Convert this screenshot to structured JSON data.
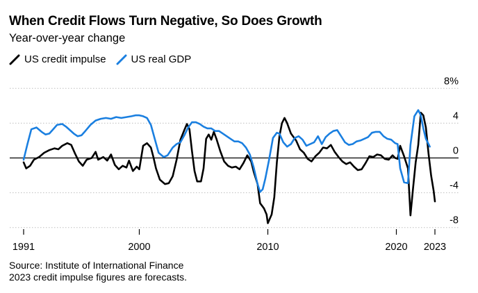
{
  "title": "When Credit Flows Turn Negative, So Does Growth",
  "subtitle": "Year-over-year change",
  "footer": {
    "source": "Source: Institute of International Finance",
    "note": "2023 credit impulse figures are forecasts."
  },
  "colors": {
    "credit": "#000000",
    "gdp": "#1a7fe0",
    "grid": "#bdbdbd",
    "zero": "#000000"
  },
  "chart_data": {
    "type": "line",
    "title": "When Credit Flows Turn Negative, So Does Growth",
    "subtitle": "Year-over-year change",
    "xlabel": "",
    "ylabel": "",
    "xlim": [
      1991,
      2023.5
    ],
    "ylim": [
      -8.5,
      8.5
    ],
    "y_ticks": [
      {
        "value": 8,
        "label": "8%"
      },
      {
        "value": 4,
        "label": "4"
      },
      {
        "value": 0,
        "label": "0"
      },
      {
        "value": -4,
        "label": "-4"
      },
      {
        "value": -8,
        "label": "-8"
      }
    ],
    "x_ticks": [
      {
        "value": 1991,
        "label": "1991"
      },
      {
        "value": 2000,
        "label": "2000"
      },
      {
        "value": 2010,
        "label": "2010"
      },
      {
        "value": 2020,
        "label": "2020"
      },
      {
        "value": 2023,
        "label": "2023"
      }
    ],
    "legend_position": "top-left",
    "series": [
      {
        "name": "US credit impulse",
        "color": "#000000",
        "points": [
          [
            1991.0,
            -0.5
          ],
          [
            1991.2,
            -1.2
          ],
          [
            1991.5,
            -0.9
          ],
          [
            1991.8,
            -0.2
          ],
          [
            1992.2,
            0.1
          ],
          [
            1992.6,
            0.6
          ],
          [
            1993.0,
            0.9
          ],
          [
            1993.4,
            1.1
          ],
          [
            1993.7,
            1.0
          ],
          [
            1994.0,
            1.4
          ],
          [
            1994.4,
            1.7
          ],
          [
            1994.7,
            1.5
          ],
          [
            1995.0,
            0.5
          ],
          [
            1995.3,
            -0.4
          ],
          [
            1995.6,
            -0.9
          ],
          [
            1995.9,
            -0.2
          ],
          [
            1996.3,
            0.0
          ],
          [
            1996.6,
            0.7
          ],
          [
            1996.8,
            -0.2
          ],
          [
            1997.2,
            0.1
          ],
          [
            1997.5,
            -0.3
          ],
          [
            1997.8,
            0.4
          ],
          [
            1998.1,
            -0.8
          ],
          [
            1998.4,
            -1.3
          ],
          [
            1998.7,
            -0.9
          ],
          [
            1999.0,
            -1.1
          ],
          [
            1999.2,
            -0.3
          ],
          [
            1999.5,
            -1.5
          ],
          [
            1999.8,
            -1.0
          ],
          [
            2000.0,
            -1.3
          ],
          [
            2000.3,
            1.4
          ],
          [
            2000.6,
            1.7
          ],
          [
            2000.9,
            1.2
          ],
          [
            2001.1,
            0.1
          ],
          [
            2001.3,
            -1.2
          ],
          [
            2001.6,
            -2.5
          ],
          [
            2002.0,
            -3.0
          ],
          [
            2002.3,
            -2.9
          ],
          [
            2002.6,
            -2.1
          ],
          [
            2002.9,
            -0.2
          ],
          [
            2003.2,
            2.1
          ],
          [
            2003.5,
            3.2
          ],
          [
            2003.7,
            3.9
          ],
          [
            2003.9,
            3.3
          ],
          [
            2004.1,
            0.8
          ],
          [
            2004.3,
            -1.5
          ],
          [
            2004.5,
            -2.7
          ],
          [
            2004.8,
            -2.7
          ],
          [
            2005.0,
            -1.2
          ],
          [
            2005.2,
            2.2
          ],
          [
            2005.4,
            2.7
          ],
          [
            2005.6,
            2.1
          ],
          [
            2005.8,
            3.0
          ],
          [
            2006.0,
            2.2
          ],
          [
            2006.3,
            0.8
          ],
          [
            2006.6,
            -0.4
          ],
          [
            2006.9,
            -0.9
          ],
          [
            2007.2,
            -1.1
          ],
          [
            2007.5,
            -1.0
          ],
          [
            2007.8,
            -1.3
          ],
          [
            2008.1,
            -0.6
          ],
          [
            2008.4,
            0.3
          ],
          [
            2008.7,
            -0.4
          ],
          [
            2008.9,
            -1.6
          ],
          [
            2009.2,
            -3.0
          ],
          [
            2009.4,
            -5.2
          ],
          [
            2009.7,
            -5.8
          ],
          [
            2009.9,
            -6.5
          ],
          [
            2010.0,
            -7.5
          ],
          [
            2010.3,
            -6.5
          ],
          [
            2010.5,
            -4.5
          ],
          [
            2010.7,
            -0.5
          ],
          [
            2010.9,
            2.5
          ],
          [
            2011.1,
            4.0
          ],
          [
            2011.3,
            4.6
          ],
          [
            2011.5,
            4.0
          ],
          [
            2011.8,
            2.8
          ],
          [
            2012.2,
            2.0
          ],
          [
            2012.5,
            1.0
          ],
          [
            2012.8,
            0.6
          ],
          [
            2013.1,
            -0.1
          ],
          [
            2013.4,
            -0.4
          ],
          [
            2013.7,
            0.2
          ],
          [
            2014.0,
            0.6
          ],
          [
            2014.3,
            1.2
          ],
          [
            2014.6,
            1.1
          ],
          [
            2014.9,
            1.5
          ],
          [
            2015.2,
            0.7
          ],
          [
            2015.5,
            0.1
          ],
          [
            2015.8,
            -0.4
          ],
          [
            2016.1,
            -0.7
          ],
          [
            2016.4,
            -0.5
          ],
          [
            2016.7,
            -1.0
          ],
          [
            2017.0,
            -1.4
          ],
          [
            2017.3,
            -1.3
          ],
          [
            2017.6,
            -0.6
          ],
          [
            2017.9,
            0.2
          ],
          [
            2018.2,
            0.1
          ],
          [
            2018.5,
            0.4
          ],
          [
            2018.8,
            0.3
          ],
          [
            2019.1,
            -0.1
          ],
          [
            2019.4,
            -0.2
          ],
          [
            2019.7,
            0.3
          ],
          [
            2019.9,
            0.0
          ],
          [
            2020.1,
            -0.1
          ],
          [
            2020.3,
            1.4
          ],
          [
            2020.6,
            0.2
          ],
          [
            2020.9,
            -1.2
          ],
          [
            2021.1,
            -6.6
          ],
          [
            2021.3,
            -3.5
          ],
          [
            2021.5,
            -0.5
          ],
          [
            2021.7,
            1.5
          ],
          [
            2021.9,
            5.2
          ],
          [
            2022.1,
            4.9
          ],
          [
            2022.3,
            3.5
          ],
          [
            2022.5,
            0.5
          ],
          [
            2022.7,
            -2.0
          ],
          [
            2022.9,
            -3.8
          ],
          [
            2023.0,
            -5.0
          ]
        ]
      },
      {
        "name": "US real GDP",
        "color": "#1a7fe0",
        "points": [
          [
            1991.0,
            -0.2
          ],
          [
            1991.3,
            1.6
          ],
          [
            1991.6,
            3.3
          ],
          [
            1992.0,
            3.5
          ],
          [
            1992.4,
            3.0
          ],
          [
            1992.7,
            2.7
          ],
          [
            1993.0,
            2.8
          ],
          [
            1993.3,
            3.3
          ],
          [
            1993.6,
            3.8
          ],
          [
            1994.0,
            3.9
          ],
          [
            1994.3,
            3.6
          ],
          [
            1994.6,
            3.2
          ],
          [
            1994.9,
            2.8
          ],
          [
            1995.2,
            2.5
          ],
          [
            1995.5,
            2.6
          ],
          [
            1995.8,
            3.1
          ],
          [
            1996.2,
            3.8
          ],
          [
            1996.6,
            4.3
          ],
          [
            1997.0,
            4.5
          ],
          [
            1997.4,
            4.6
          ],
          [
            1997.8,
            4.5
          ],
          [
            1998.2,
            4.7
          ],
          [
            1998.6,
            4.6
          ],
          [
            1999.0,
            4.7
          ],
          [
            1999.4,
            4.8
          ],
          [
            1999.7,
            4.9
          ],
          [
            2000.0,
            4.9
          ],
          [
            2000.3,
            4.8
          ],
          [
            2000.6,
            4.6
          ],
          [
            2000.9,
            3.8
          ],
          [
            2001.2,
            2.2
          ],
          [
            2001.5,
            0.6
          ],
          [
            2001.9,
            0.1
          ],
          [
            2002.2,
            0.3
          ],
          [
            2002.6,
            1.2
          ],
          [
            2002.9,
            1.6
          ],
          [
            2003.2,
            1.8
          ],
          [
            2003.5,
            2.6
          ],
          [
            2003.8,
            3.5
          ],
          [
            2004.1,
            4.1
          ],
          [
            2004.4,
            4.1
          ],
          [
            2004.7,
            3.9
          ],
          [
            2005.0,
            3.6
          ],
          [
            2005.3,
            3.4
          ],
          [
            2005.6,
            3.4
          ],
          [
            2005.9,
            3.1
          ],
          [
            2006.2,
            3.1
          ],
          [
            2006.5,
            2.8
          ],
          [
            2006.8,
            2.5
          ],
          [
            2007.1,
            2.2
          ],
          [
            2007.4,
            1.9
          ],
          [
            2007.7,
            1.9
          ],
          [
            2008.0,
            1.7
          ],
          [
            2008.3,
            1.2
          ],
          [
            2008.6,
            0.4
          ],
          [
            2008.9,
            -1.1
          ],
          [
            2009.2,
            -3.0
          ],
          [
            2009.4,
            -3.9
          ],
          [
            2009.6,
            -3.6
          ],
          [
            2009.8,
            -2.4
          ],
          [
            2010.1,
            -0.2
          ],
          [
            2010.4,
            2.3
          ],
          [
            2010.7,
            2.9
          ],
          [
            2010.9,
            2.8
          ],
          [
            2011.2,
            1.8
          ],
          [
            2011.5,
            1.3
          ],
          [
            2011.8,
            1.6
          ],
          [
            2012.1,
            2.3
          ],
          [
            2012.4,
            2.5
          ],
          [
            2012.7,
            2.1
          ],
          [
            2013.0,
            1.4
          ],
          [
            2013.3,
            1.6
          ],
          [
            2013.6,
            1.8
          ],
          [
            2013.9,
            2.5
          ],
          [
            2014.2,
            1.6
          ],
          [
            2014.5,
            2.4
          ],
          [
            2014.8,
            2.8
          ],
          [
            2015.1,
            3.1
          ],
          [
            2015.4,
            3.2
          ],
          [
            2015.7,
            2.5
          ],
          [
            2016.0,
            1.8
          ],
          [
            2016.3,
            1.5
          ],
          [
            2016.6,
            1.6
          ],
          [
            2016.9,
            1.9
          ],
          [
            2017.2,
            2.0
          ],
          [
            2017.5,
            2.2
          ],
          [
            2017.8,
            2.4
          ],
          [
            2018.1,
            2.9
          ],
          [
            2018.4,
            3.0
          ],
          [
            2018.7,
            3.0
          ],
          [
            2019.0,
            2.5
          ],
          [
            2019.3,
            2.2
          ],
          [
            2019.6,
            2.1
          ],
          [
            2019.9,
            1.7
          ],
          [
            2020.1,
            1.6
          ],
          [
            2020.3,
            -1.2
          ],
          [
            2020.6,
            -2.8
          ],
          [
            2020.9,
            -2.9
          ],
          [
            2021.1,
            1.5
          ],
          [
            2021.4,
            4.8
          ],
          [
            2021.7,
            5.5
          ],
          [
            2021.9,
            4.9
          ],
          [
            2022.1,
            3.4
          ],
          [
            2022.3,
            2.2
          ],
          [
            2022.5,
            1.6
          ],
          [
            2022.6,
            1.3
          ]
        ]
      }
    ]
  },
  "legend": [
    {
      "label": "US credit impulse",
      "color": "#000000"
    },
    {
      "label": "US real GDP",
      "color": "#1a7fe0"
    }
  ]
}
